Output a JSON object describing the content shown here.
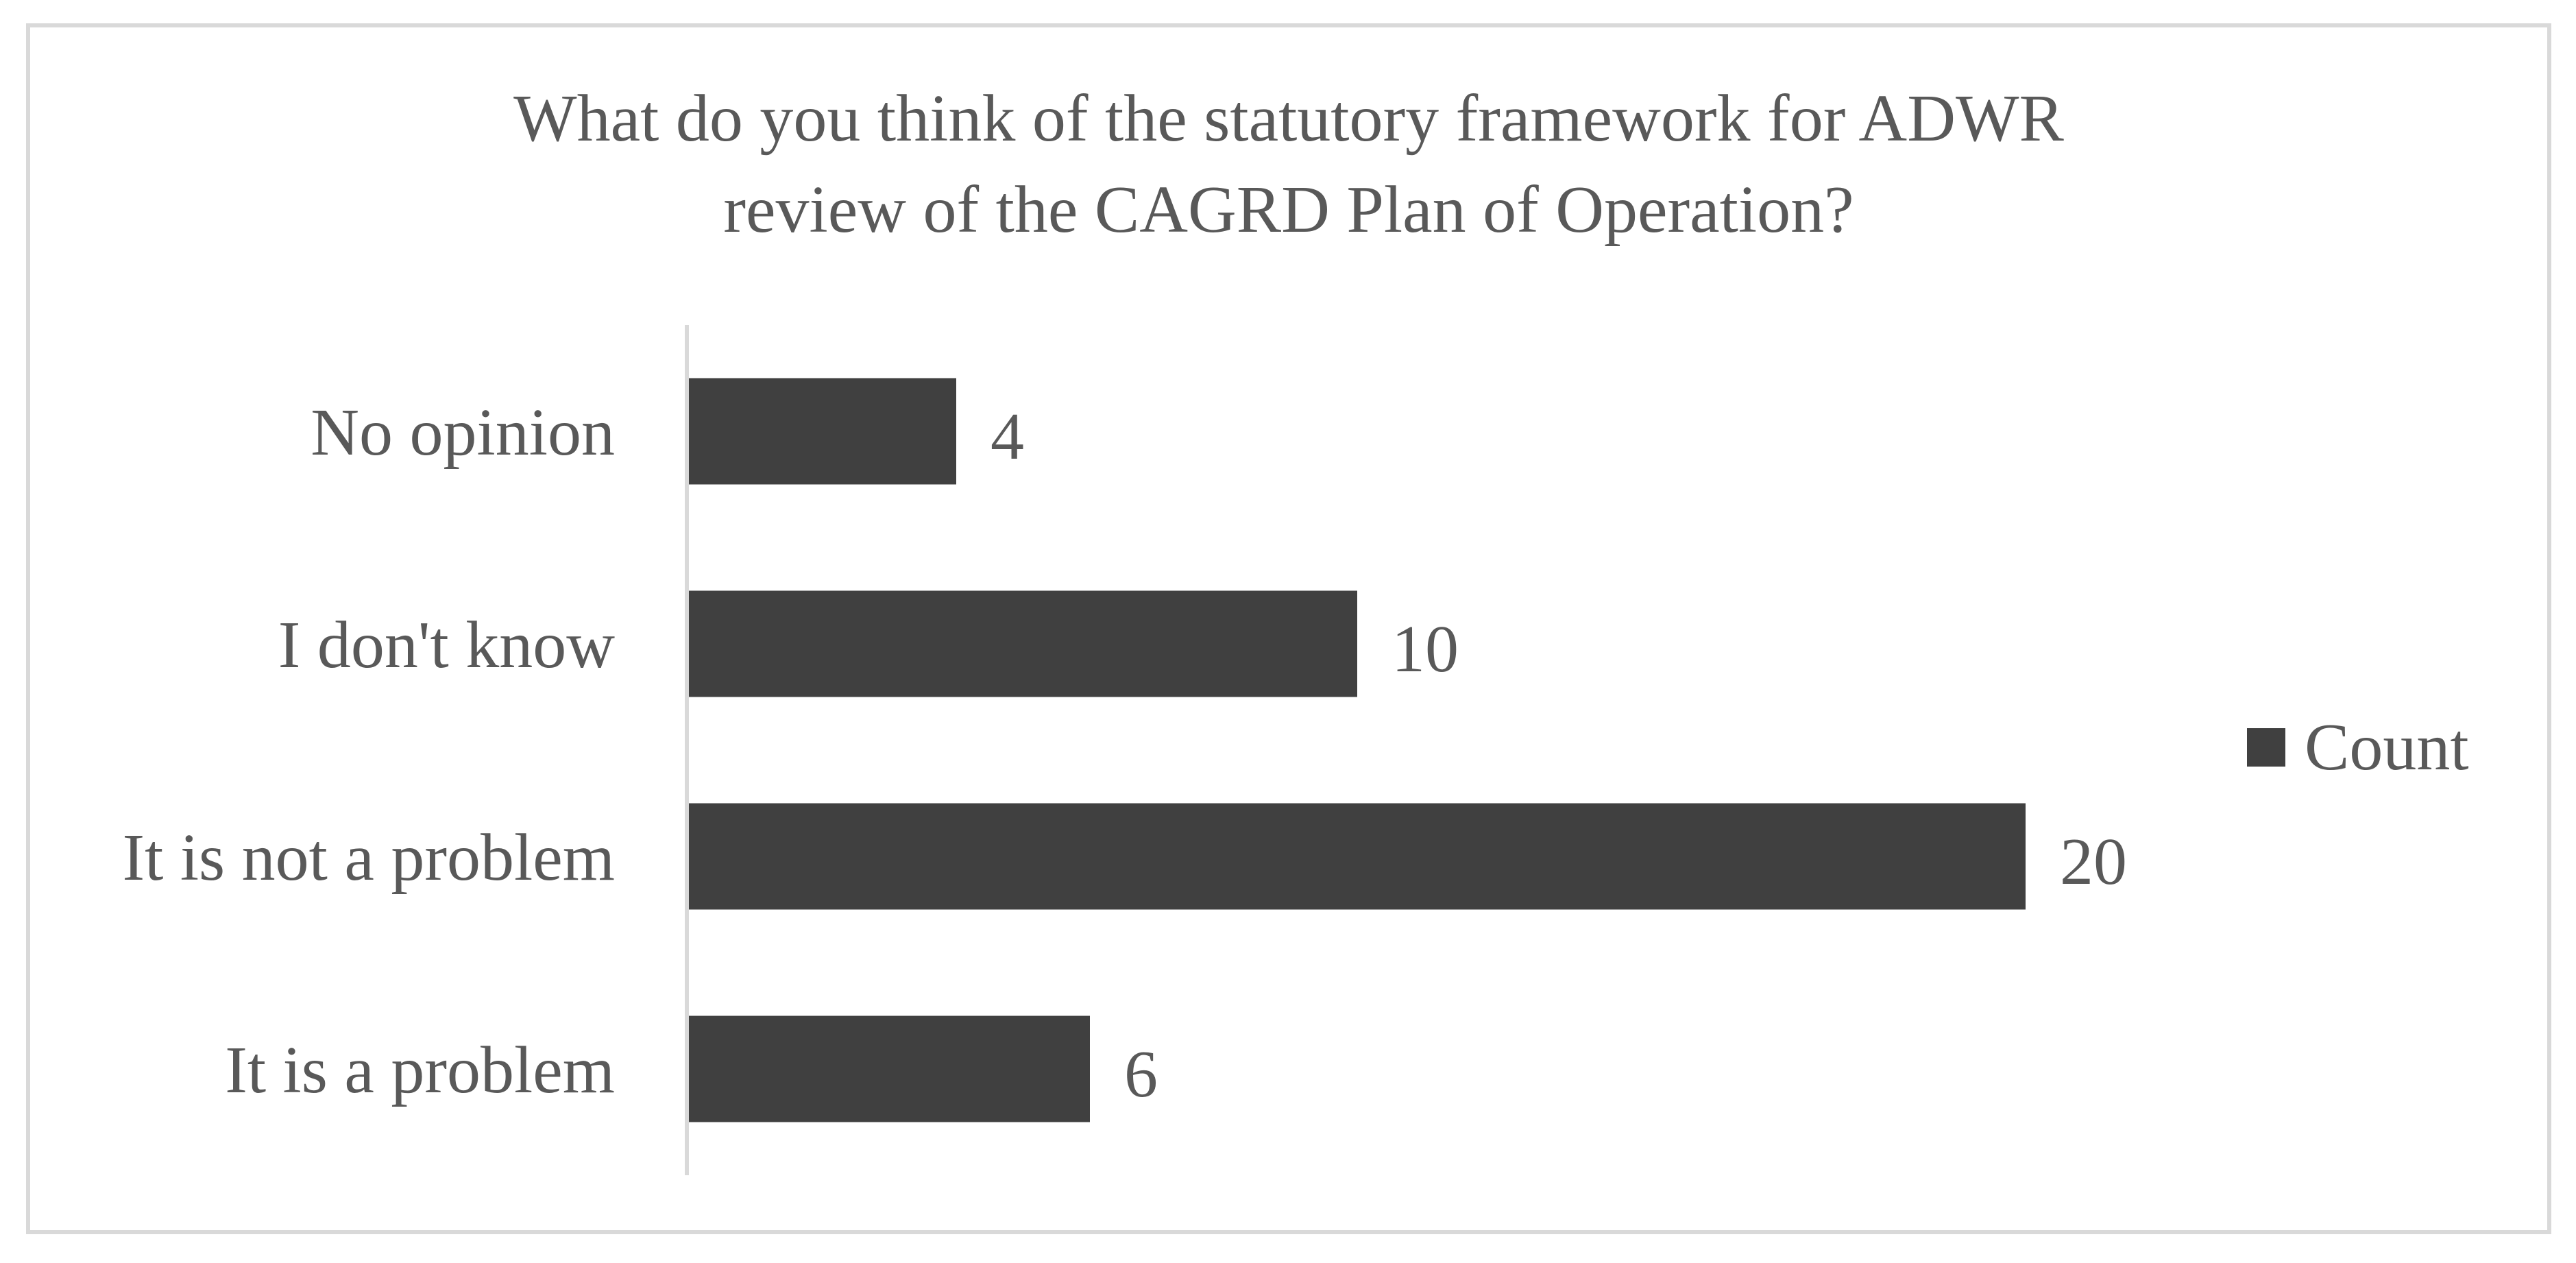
{
  "chart_data": {
    "type": "bar",
    "orientation": "horizontal",
    "title": "What do you think of the statutory framework for ADWR review of the CAGRD Plan of Operation?",
    "title_lines": [
      "What do you think of the statutory framework for ADWR",
      "review of the CAGRD Plan of Operation?"
    ],
    "categories": [
      "No opinion",
      "I don't know",
      "It is not a problem",
      "It is a problem"
    ],
    "series": [
      {
        "name": "Count",
        "values": [
          4,
          10,
          20,
          6
        ],
        "color": "#404040"
      }
    ],
    "xlim": [
      0,
      22
    ],
    "grid": false,
    "legend_position": "right",
    "data_labels": true
  },
  "colors": {
    "bar": "#404040",
    "text": "#595959",
    "axis": "#d9d9d9",
    "frame": "#d9d9d9"
  }
}
